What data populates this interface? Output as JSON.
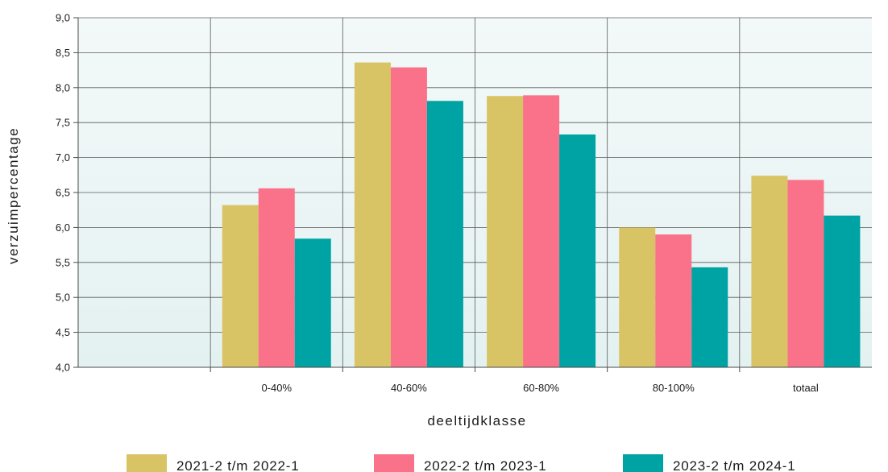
{
  "chart_data": {
    "type": "bar",
    "title": "",
    "xlabel": "deeltijdklasse",
    "ylabel": "verzuimpercentage",
    "categories": [
      "0-40%",
      "40-60%",
      "60-80%",
      "80-100%",
      "totaal"
    ],
    "series": [
      {
        "name": "2021-2 t/m 2022-1",
        "color": "#d9c465",
        "values": [
          6.32,
          8.36,
          7.88,
          6.0,
          6.74
        ]
      },
      {
        "name": "2022-2 t/m 2023-1",
        "color": "#f97289",
        "values": [
          6.56,
          8.29,
          7.89,
          5.9,
          6.68
        ]
      },
      {
        "name": "2023-2 t/m 2024-1",
        "color": "#00a3a3",
        "values": [
          5.84,
          7.81,
          7.33,
          5.43,
          6.17
        ]
      }
    ],
    "y_ticks": [
      "4,0",
      "4,5",
      "5,0",
      "5,5",
      "6,0",
      "6,5",
      "7,0",
      "7,5",
      "8,0",
      "8,5",
      "9,0"
    ],
    "ylim": [
      4.0,
      9.0
    ],
    "grid": true,
    "legend_position": "bottom"
  },
  "colors": {
    "plot_background": "#e8f3f3",
    "grid": "#5a5a5a"
  }
}
